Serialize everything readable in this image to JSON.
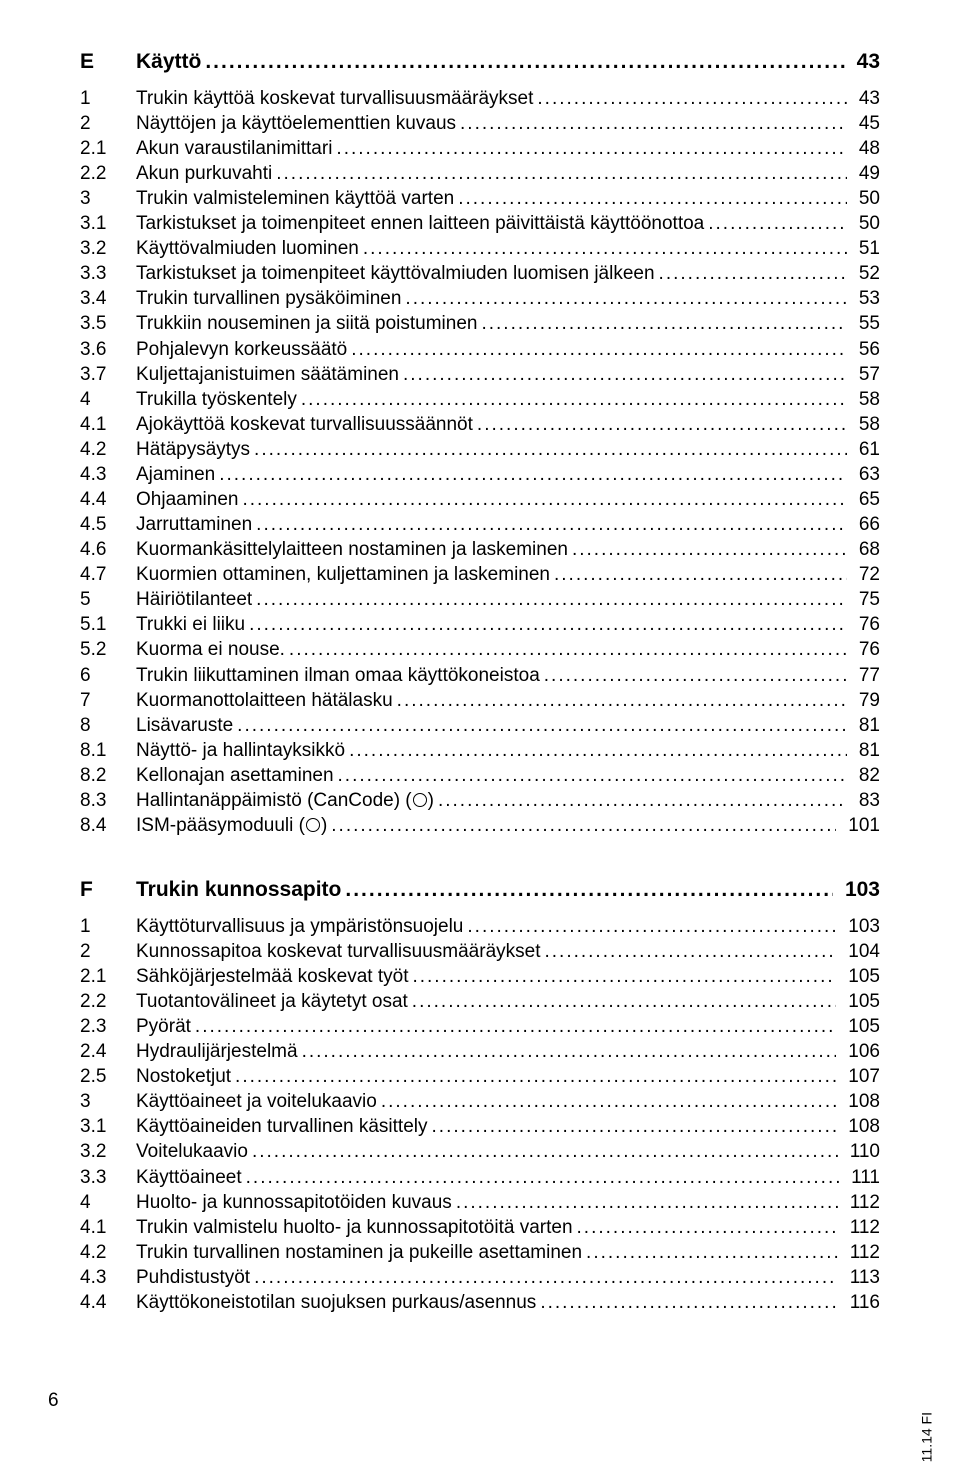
{
  "sections": [
    {
      "letter": "E",
      "title": "Käyttö",
      "page": "43",
      "items": [
        {
          "n": "1",
          "t": "Trukin käyttöä koskevat turvallisuusmääräykset",
          "p": "43"
        },
        {
          "n": "2",
          "t": "Näyttöjen ja käyttöelementtien kuvaus",
          "p": "45"
        },
        {
          "n": "2.1",
          "t": "Akun varaustilanimittari",
          "p": "48"
        },
        {
          "n": "2.2",
          "t": "Akun purkuvahti",
          "p": "49"
        },
        {
          "n": "3",
          "t": "Trukin valmisteleminen käyttöä varten",
          "p": "50"
        },
        {
          "n": "3.1",
          "t": "Tarkistukset ja toimenpiteet ennen laitteen päivittäistä käyttöönottoa",
          "p": "50"
        },
        {
          "n": "3.2",
          "t": "Käyttövalmiuden luominen",
          "p": "51"
        },
        {
          "n": "3.3",
          "t": "Tarkistukset ja toimenpiteet käyttövalmiuden luomisen jälkeen",
          "p": "52"
        },
        {
          "n": "3.4",
          "t": "Trukin turvallinen pysäköiminen",
          "p": "53"
        },
        {
          "n": "3.5",
          "t": "Trukkiin nouseminen ja siitä poistuminen",
          "p": "55"
        },
        {
          "n": "3.6",
          "t": "Pohjalevyn korkeussäätö",
          "p": "56"
        },
        {
          "n": "3.7",
          "t": "Kuljettajanistuimen säätäminen",
          "p": "57"
        },
        {
          "n": "4",
          "t": "Trukilla työskentely",
          "p": "58"
        },
        {
          "n": "4.1",
          "t": "Ajokäyttöä koskevat turvallisuussäännöt",
          "p": "58"
        },
        {
          "n": "4.2",
          "t": "Hätäpysäytys",
          "p": "61"
        },
        {
          "n": "4.3",
          "t": "Ajaminen",
          "p": "63"
        },
        {
          "n": "4.4",
          "t": "Ohjaaminen",
          "p": "65"
        },
        {
          "n": "4.5",
          "t": "Jarruttaminen",
          "p": "66"
        },
        {
          "n": "4.6",
          "t": "Kuormankäsittelylaitteen nostaminen ja laskeminen",
          "p": "68"
        },
        {
          "n": "4.7",
          "t": "Kuormien ottaminen, kuljettaminen ja laskeminen",
          "p": "72"
        },
        {
          "n": "5",
          "t": "Häiriötilanteet",
          "p": "75"
        },
        {
          "n": "5.1",
          "t": "Trukki ei liiku",
          "p": "76"
        },
        {
          "n": "5.2",
          "t": "Kuorma ei nouse.",
          "p": "76"
        },
        {
          "n": "6",
          "t": "Trukin liikuttaminen ilman omaa käyttökoneistoa",
          "p": "77"
        },
        {
          "n": "7",
          "t": "Kuormanottolaitteen hätälasku",
          "p": "79"
        },
        {
          "n": "8",
          "t": "Lisävaruste",
          "p": "81"
        },
        {
          "n": "8.1",
          "t": "Näyttö- ja hallintayksikkö",
          "p": "81"
        },
        {
          "n": "8.2",
          "t": "Kellonajan asettaminen",
          "p": "82"
        },
        {
          "n": "8.3",
          "t": "Hallintanäppäimistö (CanCode) (%CIRC%)",
          "p": "83"
        },
        {
          "n": "8.4",
          "t": "ISM-pääsymoduuli (%CIRC%)",
          "p": "101"
        }
      ]
    },
    {
      "letter": "F",
      "title": "Trukin kunnossapito",
      "page": "103",
      "items": [
        {
          "n": "1",
          "t": "Käyttöturvallisuus ja ympäristönsuojelu",
          "p": "103"
        },
        {
          "n": "2",
          "t": "Kunnossapitoa koskevat turvallisuusmääräykset",
          "p": "104"
        },
        {
          "n": "2.1",
          "t": "Sähköjärjestelmää koskevat työt",
          "p": "105"
        },
        {
          "n": "2.2",
          "t": "Tuotantovälineet ja käytetyt osat",
          "p": "105"
        },
        {
          "n": "2.3",
          "t": "Pyörät",
          "p": "105"
        },
        {
          "n": "2.4",
          "t": "Hydraulijärjestelmä",
          "p": "106"
        },
        {
          "n": "2.5",
          "t": "Nostoketjut",
          "p": "107"
        },
        {
          "n": "3",
          "t": "Käyttöaineet ja voitelukaavio",
          "p": "108"
        },
        {
          "n": "3.1",
          "t": "Käyttöaineiden turvallinen käsittely",
          "p": "108"
        },
        {
          "n": "3.2",
          "t": "Voitelukaavio",
          "p": "110"
        },
        {
          "n": "3.3",
          "t": "Käyttöaineet",
          "p": "111"
        },
        {
          "n": "4",
          "t": "Huolto- ja kunnossapitotöiden kuvaus",
          "p": "112"
        },
        {
          "n": "4.1",
          "t": "Trukin valmistelu huolto- ja kunnossapitotöitä varten",
          "p": "112"
        },
        {
          "n": "4.2",
          "t": "Trukin turvallinen nostaminen ja pukeille asettaminen",
          "p": "112"
        },
        {
          "n": "4.3",
          "t": "Puhdistustyöt",
          "p": "113"
        },
        {
          "n": "4.4",
          "t": "Käyttökoneistotilan suojuksen purkaus/asennus",
          "p": "116"
        }
      ]
    }
  ],
  "footer_page": "6",
  "side_text": "11.14 FI"
}
